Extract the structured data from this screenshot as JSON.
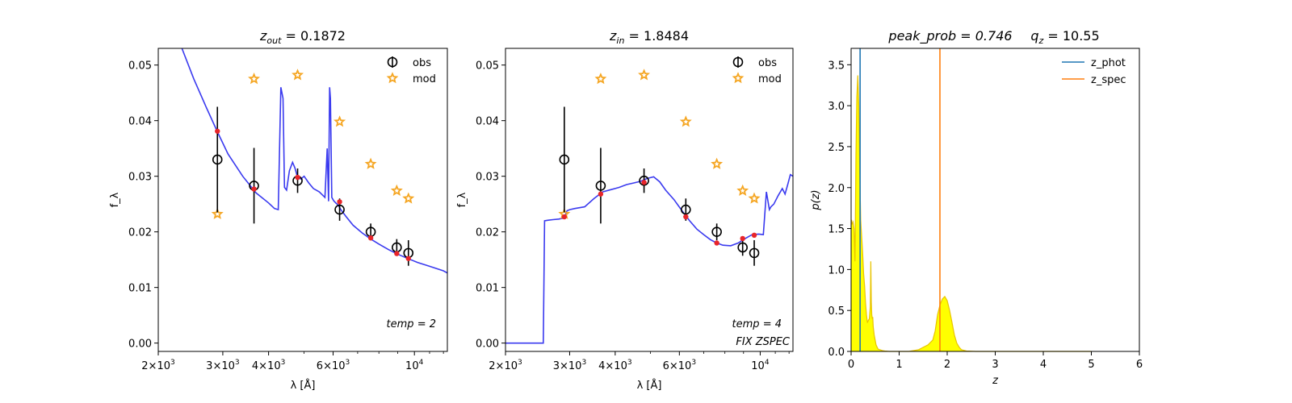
{
  "chart_data": [
    {
      "type": "scatter",
      "title": "z_out = 0.1872",
      "title_parts": {
        "sym": "z",
        "sub": "out",
        "rest": " = 0.1872"
      },
      "xlabel": "λ [Å]",
      "ylabel": "f_λ",
      "xscale": "log",
      "xlim": [
        2000,
        12300
      ],
      "ylim": [
        -0.0015,
        0.053
      ],
      "xticks": [
        {
          "value": 2000,
          "mant": "2",
          "exp": "3"
        },
        {
          "value": 3000,
          "mant": "3",
          "exp": "3"
        },
        {
          "value": 4000,
          "mant": "4",
          "exp": "3"
        },
        {
          "value": 6000,
          "mant": "6",
          "exp": "3"
        },
        {
          "value": 10000,
          "mant": "10",
          "exp": "4"
        }
      ],
      "yticks": [
        "0.00",
        "0.01",
        "0.02",
        "0.03",
        "0.04",
        "0.05"
      ],
      "legend": {
        "placement": "top-right",
        "entries": [
          "obs",
          "mod"
        ]
      },
      "annotations": [
        "temp = 2"
      ],
      "obs": {
        "x": [
          2900,
          3650,
          4800,
          6250,
          7600,
          8950,
          9630
        ],
        "y": [
          0.033,
          0.0283,
          0.0292,
          0.024,
          0.02,
          0.0172,
          0.0162
        ],
        "err": [
          0.0095,
          0.0068,
          0.0022,
          0.002,
          0.0015,
          0.0015,
          0.0023
        ]
      },
      "mod": {
        "x": [
          2900,
          3650,
          4800,
          6250,
          7600,
          8950,
          9630
        ],
        "y": [
          0.0232,
          0.0475,
          0.0482,
          0.0398,
          0.0322,
          0.0274,
          0.026
        ]
      },
      "model_points": {
        "x": [
          2900,
          3650,
          4800,
          6250,
          7600,
          8950,
          9630
        ],
        "y": [
          0.0381,
          0.0277,
          0.0298,
          0.0254,
          0.0189,
          0.0161,
          0.0152
        ]
      },
      "template_curve": {
        "x": [
          2320,
          2500,
          2700,
          2900,
          3100,
          3400,
          3700,
          4000,
          4150,
          4250,
          4320,
          4380,
          4420,
          4480,
          4560,
          4650,
          4720,
          4800,
          4900,
          5000,
          5150,
          5300,
          5500,
          5700,
          5780,
          5830,
          5870,
          5900,
          5950,
          6020,
          6100,
          6200,
          6300,
          6500,
          6800,
          7200,
          7600,
          8000,
          8500,
          9000,
          9600,
          10200,
          11000,
          12000,
          12300
        ],
        "y": [
          0.053,
          0.0475,
          0.0425,
          0.038,
          0.034,
          0.03,
          0.027,
          0.0252,
          0.0242,
          0.024,
          0.046,
          0.044,
          0.028,
          0.0275,
          0.031,
          0.0325,
          0.0315,
          0.0298,
          0.0295,
          0.03,
          0.0288,
          0.0278,
          0.0272,
          0.0262,
          0.035,
          0.0255,
          0.046,
          0.044,
          0.0262,
          0.0256,
          0.0252,
          0.0248,
          0.024,
          0.0228,
          0.0212,
          0.0198,
          0.0187,
          0.0178,
          0.0168,
          0.016,
          0.0152,
          0.0145,
          0.0138,
          0.013,
          0.0126
        ]
      }
    },
    {
      "type": "scatter",
      "title": "z_in = 1.8484",
      "title_parts": {
        "sym": "z",
        "sub": "in",
        "rest": " = 1.8484"
      },
      "xlabel": "λ [Å]",
      "ylabel": "f_λ",
      "xscale": "log",
      "xlim": [
        2000,
        12300
      ],
      "ylim": [
        -0.0015,
        0.053
      ],
      "xticks": [
        {
          "value": 2000,
          "mant": "2",
          "exp": "3"
        },
        {
          "value": 3000,
          "mant": "3",
          "exp": "3"
        },
        {
          "value": 4000,
          "mant": "4",
          "exp": "3"
        },
        {
          "value": 6000,
          "mant": "6",
          "exp": "3"
        },
        {
          "value": 10000,
          "mant": "10",
          "exp": "4"
        }
      ],
      "yticks": [
        "0.00",
        "0.01",
        "0.02",
        "0.03",
        "0.04",
        "0.05"
      ],
      "legend": {
        "placement": "top-right",
        "entries": [
          "obs",
          "mod"
        ]
      },
      "annotations": [
        "temp = 4",
        "FIX ZSPEC"
      ],
      "obs": {
        "x": [
          2900,
          3650,
          4800,
          6250,
          7600,
          8950,
          9630
        ],
        "y": [
          0.033,
          0.0283,
          0.0292,
          0.024,
          0.02,
          0.0172,
          0.0162
        ],
        "err": [
          0.0095,
          0.0068,
          0.0022,
          0.002,
          0.0015,
          0.0015,
          0.0023
        ]
      },
      "mod": {
        "x": [
          2900,
          3650,
          4800,
          6250,
          7600,
          8950,
          9630
        ],
        "y": [
          0.0232,
          0.0475,
          0.0482,
          0.0398,
          0.0322,
          0.0274,
          0.026
        ]
      },
      "model_points": {
        "x": [
          2900,
          3650,
          4800,
          6250,
          7600,
          8950,
          9630
        ],
        "y": [
          0.0227,
          0.0268,
          0.0289,
          0.0227,
          0.018,
          0.0188,
          0.0194
        ]
      },
      "template_curve": {
        "x": [
          2000,
          2540,
          2560,
          2620,
          2700,
          2800,
          2900,
          2950,
          3000,
          3100,
          3300,
          3500,
          3700,
          3900,
          4100,
          4300,
          4500,
          4700,
          4900,
          5100,
          5300,
          5500,
          5800,
          6100,
          6400,
          6700,
          7000,
          7300,
          7600,
          7900,
          8300,
          8700,
          9100,
          9500,
          9900,
          10200,
          10400,
          10600,
          10700,
          10900,
          11200,
          11500,
          11700,
          11900,
          12100,
          12300
        ],
        "y": [
          0.0,
          0.0,
          0.022,
          0.0221,
          0.0222,
          0.0223,
          0.0225,
          0.0238,
          0.024,
          0.0242,
          0.0245,
          0.026,
          0.0272,
          0.0276,
          0.028,
          0.0285,
          0.0288,
          0.0291,
          0.0296,
          0.0299,
          0.029,
          0.0275,
          0.0258,
          0.0238,
          0.022,
          0.0205,
          0.0195,
          0.0186,
          0.018,
          0.0176,
          0.0175,
          0.018,
          0.0188,
          0.0195,
          0.0196,
          0.0195,
          0.0272,
          0.024,
          0.0245,
          0.025,
          0.0265,
          0.0278,
          0.0268,
          0.0285,
          0.0303,
          0.03
        ]
      }
    },
    {
      "type": "area",
      "title": "peak_prob = 0.746     q_z = 10.55",
      "title_parts": {
        "left": "peak_prob = 0.746",
        "right_sym": "q",
        "right_sub": "z",
        "right_rest": " = 10.55"
      },
      "xlabel": "z",
      "ylabel": "p(z)",
      "xlim": [
        0,
        6
      ],
      "ylim": [
        0,
        3.7
      ],
      "xticks": [
        "0",
        "1",
        "2",
        "3",
        "4",
        "5",
        "6"
      ],
      "yticks": [
        "0.0",
        "0.5",
        "1.0",
        "1.5",
        "2.0",
        "2.5",
        "3.0",
        "3.5"
      ],
      "legend": {
        "placement": "top-right",
        "entries": [
          "z_phot",
          "z_spec"
        ]
      },
      "vlines": [
        {
          "name": "z_phot",
          "x": 0.1872,
          "color": "#1f77b4"
        },
        {
          "name": "z_spec",
          "x": 1.8484,
          "color": "#ff7f0e"
        }
      ],
      "pdf": {
        "z": [
          0.0,
          0.01,
          0.02,
          0.04,
          0.06,
          0.08,
          0.1,
          0.12,
          0.14,
          0.16,
          0.18,
          0.2,
          0.22,
          0.24,
          0.26,
          0.28,
          0.3,
          0.32,
          0.34,
          0.36,
          0.38,
          0.4,
          0.41,
          0.42,
          0.43,
          0.44,
          0.45,
          0.46,
          0.48,
          0.52,
          0.56,
          0.6,
          0.65,
          0.7,
          0.8,
          1.0,
          1.2,
          1.4,
          1.5,
          1.6,
          1.7,
          1.75,
          1.8,
          1.85,
          1.9,
          1.95,
          2.0,
          2.05,
          2.1,
          2.15,
          2.2,
          2.25,
          2.3,
          2.4,
          2.6,
          3.0,
          4.0,
          5.0
        ],
        "p": [
          1.6,
          1.6,
          1.55,
          1.58,
          1.5,
          1.1,
          2.4,
          3.1,
          3.37,
          3.0,
          2.2,
          1.6,
          1.4,
          1.2,
          0.95,
          0.8,
          0.6,
          0.45,
          0.35,
          0.38,
          0.4,
          0.55,
          1.1,
          0.6,
          0.45,
          0.4,
          0.42,
          0.3,
          0.2,
          0.08,
          0.03,
          0.02,
          0.01,
          0.005,
          0.0,
          0.0,
          0.0,
          0.02,
          0.05,
          0.08,
          0.14,
          0.25,
          0.45,
          0.57,
          0.64,
          0.67,
          0.62,
          0.5,
          0.35,
          0.2,
          0.1,
          0.05,
          0.02,
          0.005,
          0.0,
          0.0,
          0.0,
          0.0
        ]
      }
    }
  ]
}
